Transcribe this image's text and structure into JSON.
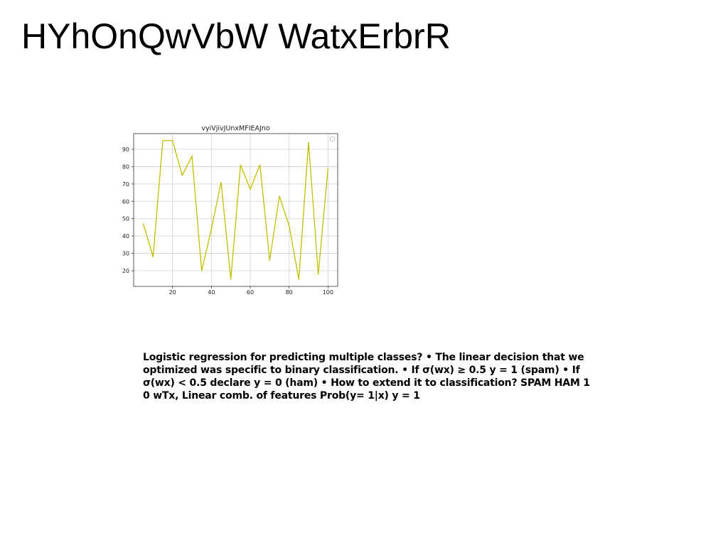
{
  "page": {
    "title": "HYhOnQwVbW WatxErbrR",
    "caption": "Logistic regression for predicting multiple classes? • The linear decision that we optimized was specific to binary classification. • If σ(w⁣x) ≥ 0.5 y = 1 (spam) • If σ(w⁣x) < 0.5 declare y = 0 (ham) • How to extend it to classification? SPAM HAM 1 0 wTx, Linear comb. of features Prob(y= 1|x) y = 1"
  },
  "chart_data": {
    "type": "line",
    "title": "vyiVjivJUnxMFIEAJno",
    "xlabel": "",
    "ylabel": "",
    "x": [
      5,
      10,
      15,
      20,
      25,
      30,
      35,
      40,
      45,
      50,
      55,
      60,
      65,
      70,
      75,
      80,
      85,
      90,
      95,
      100
    ],
    "series": [
      {
        "values": [
          47,
          28,
          95,
          95,
          75,
          86,
          20,
          44,
          71,
          15,
          81,
          67,
          81,
          26,
          63,
          46,
          15,
          94,
          18,
          79
        ],
        "color": "#bfbf00"
      }
    ],
    "xlim": [
      0,
      105
    ],
    "ylim": [
      11,
      99
    ],
    "xticks": [
      20,
      40,
      60,
      80,
      100
    ],
    "yticks": [
      20,
      30,
      40,
      50,
      60,
      70,
      80,
      90
    ],
    "grid": true,
    "legend": "top-right"
  }
}
